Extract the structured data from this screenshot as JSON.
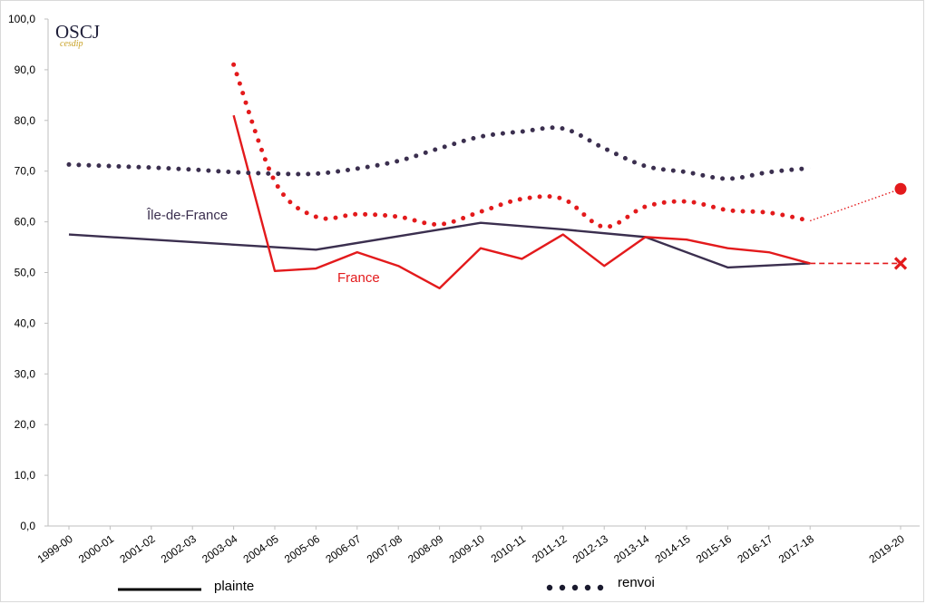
{
  "chart_data": {
    "type": "line",
    "logo": {
      "main": "OSCJ",
      "sub": "cesdip"
    },
    "categories": [
      "1999-00",
      "2000-01",
      "2001-02",
      "2002-03",
      "2003-04",
      "2004-05",
      "2005-06",
      "2006-07",
      "2007-08",
      "2008-09",
      "2009-10",
      "2010-11",
      "2011-12",
      "2012-13",
      "2013-14",
      "2014-15",
      "2015-16",
      "2016-17",
      "2017-18",
      "2019-20"
    ],
    "y_ticks": [
      "0,0",
      "10,0",
      "20,0",
      "30,0",
      "40,0",
      "50,0",
      "60,0",
      "70,0",
      "80,0",
      "90,0",
      "100,0"
    ],
    "ylim": [
      0,
      100
    ],
    "grid": false,
    "series": [
      {
        "name": "Île-de-France",
        "kind": "plainte",
        "color": "#3b2f4f",
        "values": [
          57.5,
          null,
          null,
          null,
          null,
          null,
          54.5,
          null,
          null,
          null,
          59.8,
          null,
          58.5,
          null,
          57.0,
          null,
          51.0,
          null,
          51.8,
          null
        ]
      },
      {
        "name": "France",
        "kind": "plainte",
        "color": "#e31a1c",
        "values": [
          null,
          null,
          null,
          null,
          81.0,
          50.3,
          50.8,
          54.0,
          51.3,
          46.9,
          54.8,
          52.7,
          57.5,
          51.3,
          57.0,
          56.5,
          54.8,
          54.0,
          51.8,
          null
        ]
      },
      {
        "name": "",
        "kind": "renvoi",
        "color": "#3b2f4f",
        "values": [
          71.3,
          71.0,
          70.7,
          70.3,
          69.8,
          69.5,
          69.5,
          70.5,
          72.0,
          74.5,
          76.8,
          77.8,
          78.4,
          74.5,
          71.0,
          69.8,
          68.5,
          69.8,
          70.6,
          null
        ]
      },
      {
        "name": "",
        "kind": "renvoi",
        "color": "#e31a1c",
        "values": [
          null,
          null,
          null,
          null,
          91.0,
          68.0,
          61.0,
          61.5,
          61.0,
          59.5,
          62.0,
          64.5,
          64.5,
          59.0,
          63.0,
          64.0,
          62.3,
          61.8,
          60.2,
          null
        ]
      }
    ],
    "projection_2019_20": {
      "plainte": {
        "value": 51.8,
        "marker": "×",
        "color": "#e31a1c"
      },
      "renvoi": {
        "value": 66.5,
        "marker": "●",
        "color": "#e31a1c"
      }
    },
    "legend": {
      "plainte": "plainte",
      "renvoi": "renvoi",
      "placement": "bottom"
    }
  }
}
